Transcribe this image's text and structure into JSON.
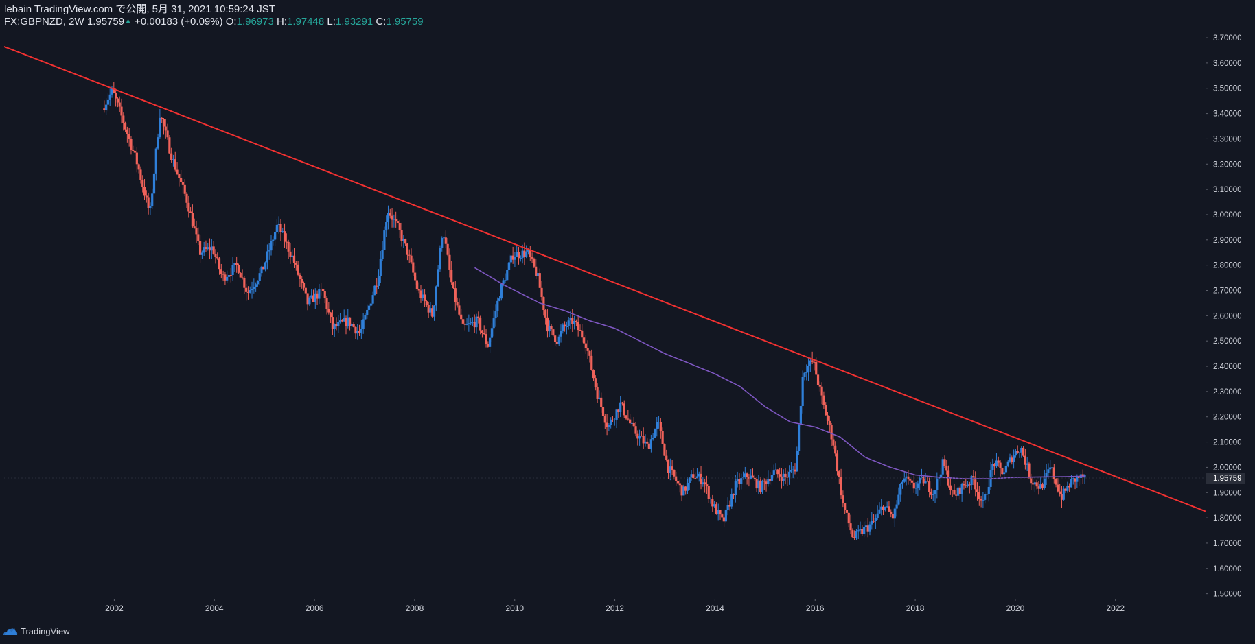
{
  "header": {
    "line1": "lebain TradingView.com で公開, 5月 31, 2021 10:59:24 JST",
    "symbol": "FX:GBPNZD, 2W",
    "last": "1.95759",
    "change": "+0.00183 (+0.09%)",
    "o_label": "O:",
    "o_value": "1.96973",
    "h_label": "H:",
    "h_value": "1.97448",
    "l_label": "L:",
    "l_value": "1.93291",
    "c_label": "C:",
    "c_value": "1.95759"
  },
  "footer": {
    "brand": "TradingView",
    "logo_icon": "tradingview-cloud-icon"
  },
  "colors": {
    "background": "#131722",
    "up": "#2f7fd8",
    "down": "#f0625a",
    "trendline": "#f23131",
    "ma": "#7e57c2",
    "axis_text": "#d1d4dc",
    "price_tag_bg": "#2a2e39"
  },
  "chart_data": {
    "type": "candlestick",
    "symbol": "FX:GBPNZD",
    "interval": "2W",
    "current_price": 1.95759,
    "x_ticks": [
      "2002",
      "2004",
      "2006",
      "2008",
      "2010",
      "2012",
      "2014",
      "2016",
      "2018",
      "2020",
      "2022"
    ],
    "y_ticks": [
      "1.50000",
      "1.60000",
      "1.70000",
      "1.80000",
      "1.90000",
      "2.00000",
      "2.10000",
      "2.20000",
      "2.30000",
      "2.40000",
      "2.50000",
      "2.60000",
      "2.70000",
      "2.80000",
      "2.90000",
      "3.00000",
      "3.10000",
      "3.20000",
      "3.30000",
      "3.40000",
      "3.50000",
      "3.60000",
      "3.70000"
    ],
    "ylim": [
      1.48,
      3.73
    ],
    "xlim": [
      1999.8,
      2023.8
    ],
    "price_path": [
      [
        2001.8,
        3.42
      ],
      [
        2002.0,
        3.49
      ],
      [
        2002.2,
        3.38
      ],
      [
        2002.5,
        3.2
      ],
      [
        2002.75,
        3.0
      ],
      [
        2002.95,
        3.4
      ],
      [
        2003.2,
        3.22
      ],
      [
        2003.5,
        3.05
      ],
      [
        2003.75,
        2.85
      ],
      [
        2004.0,
        2.87
      ],
      [
        2004.2,
        2.75
      ],
      [
        2004.5,
        2.8
      ],
      [
        2004.7,
        2.69
      ],
      [
        2005.0,
        2.78
      ],
      [
        2005.3,
        2.96
      ],
      [
        2005.6,
        2.83
      ],
      [
        2005.9,
        2.65
      ],
      [
        2006.2,
        2.7
      ],
      [
        2006.4,
        2.55
      ],
      [
        2006.7,
        2.58
      ],
      [
        2006.95,
        2.53
      ],
      [
        2007.1,
        2.62
      ],
      [
        2007.3,
        2.75
      ],
      [
        2007.5,
        3.02
      ],
      [
        2007.7,
        2.95
      ],
      [
        2007.9,
        2.85
      ],
      [
        2008.1,
        2.7
      ],
      [
        2008.4,
        2.6
      ],
      [
        2008.6,
        2.95
      ],
      [
        2008.8,
        2.7
      ],
      [
        2009.0,
        2.55
      ],
      [
        2009.3,
        2.58
      ],
      [
        2009.5,
        2.48
      ],
      [
        2009.75,
        2.7
      ],
      [
        2010.0,
        2.84
      ],
      [
        2010.3,
        2.85
      ],
      [
        2010.5,
        2.75
      ],
      [
        2010.7,
        2.55
      ],
      [
        2010.9,
        2.5
      ],
      [
        2011.0,
        2.55
      ],
      [
        2011.2,
        2.58
      ],
      [
        2011.45,
        2.5
      ],
      [
        2011.7,
        2.28
      ],
      [
        2011.9,
        2.16
      ],
      [
        2012.15,
        2.25
      ],
      [
        2012.4,
        2.15
      ],
      [
        2012.7,
        2.08
      ],
      [
        2012.9,
        2.18
      ],
      [
        2013.1,
        2.0
      ],
      [
        2013.4,
        1.9
      ],
      [
        2013.6,
        1.97
      ],
      [
        2013.8,
        1.95
      ],
      [
        2014.0,
        1.85
      ],
      [
        2014.2,
        1.78
      ],
      [
        2014.45,
        1.93
      ],
      [
        2014.7,
        1.97
      ],
      [
        2014.95,
        1.92
      ],
      [
        2015.2,
        1.98
      ],
      [
        2015.45,
        1.96
      ],
      [
        2015.65,
        2.0
      ],
      [
        2015.8,
        2.38
      ],
      [
        2016.0,
        2.42
      ],
      [
        2016.2,
        2.25
      ],
      [
        2016.4,
        2.1
      ],
      [
        2016.6,
        1.85
      ],
      [
        2016.8,
        1.72
      ],
      [
        2017.0,
        1.75
      ],
      [
        2017.2,
        1.78
      ],
      [
        2017.4,
        1.85
      ],
      [
        2017.6,
        1.8
      ],
      [
        2017.8,
        1.96
      ],
      [
        2018.0,
        1.92
      ],
      [
        2018.2,
        1.95
      ],
      [
        2018.4,
        1.9
      ],
      [
        2018.6,
        2.02
      ],
      [
        2018.8,
        1.88
      ],
      [
        2019.0,
        1.93
      ],
      [
        2019.2,
        1.95
      ],
      [
        2019.4,
        1.85
      ],
      [
        2019.6,
        2.02
      ],
      [
        2019.8,
        1.98
      ],
      [
        2020.0,
        2.05
      ],
      [
        2020.15,
        2.08
      ],
      [
        2020.35,
        1.95
      ],
      [
        2020.55,
        1.92
      ],
      [
        2020.75,
        2.0
      ],
      [
        2020.95,
        1.88
      ],
      [
        2021.15,
        1.94
      ],
      [
        2021.3,
        1.96
      ],
      [
        2021.4,
        1.96
      ]
    ],
    "trendline": {
      "from": [
        1999.8,
        3.665
      ],
      "to": [
        2023.8,
        1.826
      ]
    },
    "moving_average": [
      [
        2009.2,
        2.79
      ],
      [
        2009.8,
        2.72
      ],
      [
        2010.5,
        2.65
      ],
      [
        2011.0,
        2.62
      ],
      [
        2011.5,
        2.58
      ],
      [
        2012.0,
        2.55
      ],
      [
        2012.5,
        2.5
      ],
      [
        2013.0,
        2.45
      ],
      [
        2013.5,
        2.41
      ],
      [
        2014.0,
        2.37
      ],
      [
        2014.5,
        2.32
      ],
      [
        2015.0,
        2.24
      ],
      [
        2015.5,
        2.18
      ],
      [
        2016.0,
        2.16
      ],
      [
        2016.5,
        2.12
      ],
      [
        2017.0,
        2.04
      ],
      [
        2017.5,
        2.0
      ],
      [
        2018.0,
        1.97
      ],
      [
        2018.5,
        1.96
      ],
      [
        2019.0,
        1.955
      ],
      [
        2019.5,
        1.955
      ],
      [
        2020.0,
        1.96
      ],
      [
        2020.5,
        1.962
      ],
      [
        2021.0,
        1.963
      ],
      [
        2021.4,
        1.965
      ]
    ]
  }
}
